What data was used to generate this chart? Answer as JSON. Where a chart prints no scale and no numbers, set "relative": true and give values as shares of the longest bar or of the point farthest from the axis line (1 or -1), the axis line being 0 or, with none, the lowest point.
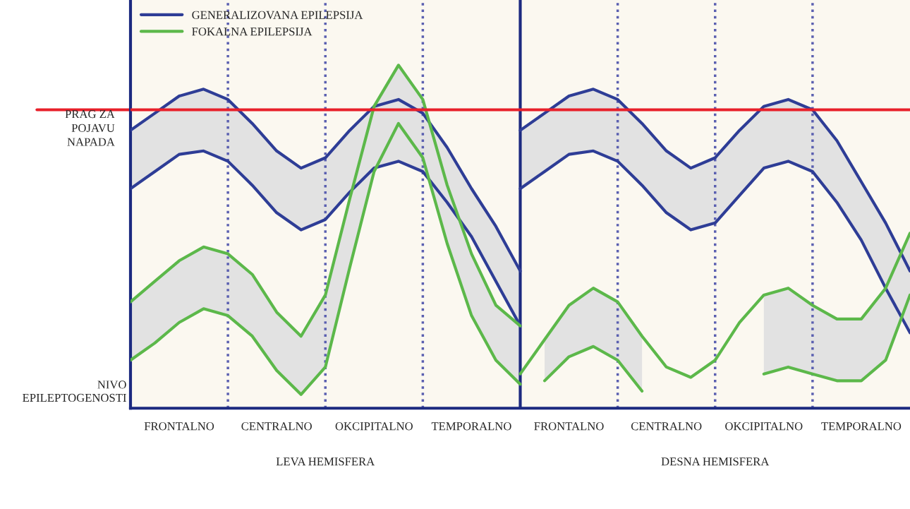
{
  "chart_data": {
    "type": "line",
    "relative": true,
    "ylabel": "NIVO EPILEPTOGENOSTI",
    "categories": [
      null,
      null,
      "FRONTALNO",
      null,
      null,
      null,
      "CENTRALNO",
      null,
      null,
      null,
      "OKCIPITALNO",
      null,
      null,
      null,
      "TEMPORALNO",
      null,
      null,
      null,
      "FRONTALNO",
      null,
      null,
      null,
      "CENTRALNO",
      null,
      null,
      null,
      "OKCIPITALNO",
      null,
      null,
      null,
      "TEMPORALNO",
      null,
      null
    ],
    "annotations": [
      "LEVA HEMISFERA",
      "DESNA HEMISFERA"
    ],
    "legend": "top left",
    "grid": "x",
    "ref_lines": [
      {
        "axis": "y",
        "value": 0.87,
        "label": "PRAG ZA POJAVU NAPADA",
        "color": "#e8202a",
        "line_style": "solid"
      }
    ],
    "series": [
      {
        "name": "GENERALIZOVANA EPILEPSIJA",
        "color": "#2e3d96",
        "values": [
          0.81,
          0.86,
          0.91,
          0.93,
          0.9,
          0.83,
          0.75,
          0.7,
          0.73,
          0.81,
          0.88,
          0.9,
          0.86,
          0.76,
          0.64,
          0.53,
          0.4,
          null,
          null,
          null,
          null,
          null,
          null,
          null,
          null,
          null,
          null,
          null,
          null,
          null,
          null,
          null,
          null
        ]
      },
      {
        "color": "#2e3d96",
        "values": [
          0.64,
          0.69,
          0.74,
          0.75,
          0.72,
          0.65,
          0.57,
          0.52,
          0.55,
          0.63,
          0.7,
          0.72,
          0.69,
          0.6,
          0.5,
          0.37,
          0.24,
          null,
          null,
          null,
          null,
          null,
          null,
          null,
          null,
          null,
          null,
          null,
          null,
          null,
          null,
          null,
          null
        ]
      },
      {
        "name": "FOKALNA EPILEPSIJA",
        "color": "#5cb84a",
        "values": [
          0.31,
          0.37,
          0.43,
          0.47,
          0.45,
          0.39,
          0.28,
          0.21,
          0.33,
          0.61,
          0.88,
          1.0,
          0.9,
          0.65,
          0.45,
          0.3,
          0.24,
          null,
          null,
          null,
          null,
          null,
          null,
          null,
          null,
          null,
          null,
          null,
          null,
          null,
          null,
          null,
          null
        ]
      },
      {
        "color": "#5cb84a",
        "values": [
          0.14,
          0.19,
          0.25,
          0.29,
          0.27,
          0.21,
          0.11,
          0.04,
          0.12,
          0.41,
          0.69,
          0.83,
          0.73,
          0.48,
          0.27,
          0.14,
          0.07,
          null,
          null,
          null,
          null,
          null,
          null,
          null,
          null,
          null,
          null,
          null,
          null,
          null,
          null,
          null,
          null
        ]
      },
      {
        "color": "#2e3d96",
        "values": [
          null,
          null,
          null,
          null,
          null,
          null,
          null,
          null,
          null,
          null,
          null,
          null,
          null,
          null,
          null,
          null,
          0.81,
          0.86,
          0.91,
          0.93,
          0.9,
          0.83,
          0.75,
          0.7,
          0.73,
          0.81,
          0.88,
          0.9,
          0.87,
          0.78,
          0.66,
          0.54,
          0.4
        ]
      },
      {
        "color": "#2e3d96",
        "values": [
          null,
          null,
          null,
          null,
          null,
          null,
          null,
          null,
          null,
          null,
          null,
          null,
          null,
          null,
          null,
          null,
          0.64,
          0.69,
          0.74,
          0.75,
          0.72,
          0.65,
          0.57,
          0.52,
          0.54,
          0.62,
          0.7,
          0.72,
          0.69,
          0.6,
          0.49,
          0.35,
          0.22
        ]
      },
      {
        "color": "#5cb84a",
        "values": [
          null,
          null,
          null,
          null,
          null,
          null,
          null,
          null,
          null,
          null,
          null,
          null,
          null,
          null,
          null,
          null,
          0.1,
          0.2,
          0.3,
          0.35,
          0.31,
          0.21,
          0.12,
          0.09,
          0.14,
          0.25,
          0.33,
          0.35,
          0.3,
          0.26,
          0.26,
          0.35,
          0.51
        ]
      },
      {
        "color": "#5cb84a",
        "values": [
          null,
          null,
          null,
          null,
          null,
          null,
          null,
          null,
          null,
          null,
          null,
          null,
          null,
          null,
          null,
          null,
          null,
          0.08,
          0.15,
          0.18,
          0.14,
          0.05,
          null,
          null,
          null,
          null,
          0.1,
          0.12,
          0.1,
          0.08,
          0.08,
          0.14,
          0.33
        ]
      }
    ]
  }
}
